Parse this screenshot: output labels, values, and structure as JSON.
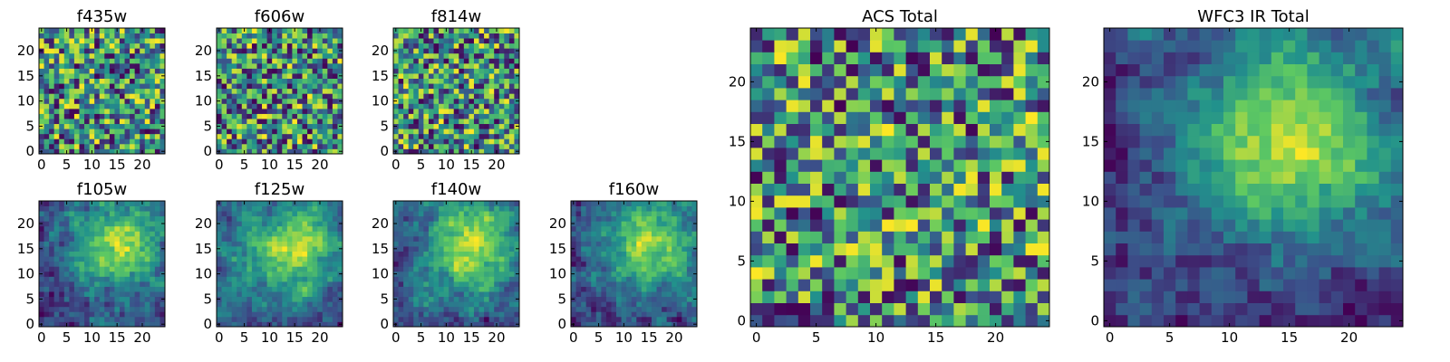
{
  "figure": {
    "colormap": "viridis",
    "colormap_stops": [
      "#440154",
      "#3b528b",
      "#21918c",
      "#5ec962",
      "#fde725"
    ]
  },
  "chart_data": [
    {
      "type": "heatmap",
      "title": "f435w",
      "grid": [
        25,
        25
      ],
      "xlim": [
        -0.5,
        24.5
      ],
      "ylim": [
        -0.5,
        24.5
      ],
      "xticks": [
        0,
        5,
        10,
        15,
        20
      ],
      "yticks": [
        0,
        5,
        10,
        15,
        20
      ],
      "texture": "noise",
      "seed": 11,
      "smooth": 0
    },
    {
      "type": "heatmap",
      "title": "f606w",
      "grid": [
        25,
        25
      ],
      "xlim": [
        -0.5,
        24.5
      ],
      "ylim": [
        -0.5,
        24.5
      ],
      "xticks": [
        0,
        5,
        10,
        15,
        20
      ],
      "yticks": [
        0,
        5,
        10,
        15,
        20
      ],
      "texture": "noise",
      "seed": 23,
      "smooth": 0
    },
    {
      "type": "heatmap",
      "title": "f814w",
      "grid": [
        25,
        25
      ],
      "xlim": [
        -0.5,
        24.5
      ],
      "ylim": [
        -0.5,
        24.5
      ],
      "xticks": [
        0,
        5,
        10,
        15,
        20
      ],
      "yticks": [
        0,
        5,
        10,
        15,
        20
      ],
      "texture": "noise",
      "seed": 37,
      "smooth": 0
    },
    {
      "type": "heatmap",
      "title": "f105w",
      "grid": [
        25,
        25
      ],
      "xlim": [
        -0.5,
        24.5
      ],
      "ylim": [
        -0.5,
        24.5
      ],
      "xticks": [
        0,
        5,
        10,
        15,
        20
      ],
      "yticks": [
        0,
        5,
        10,
        15,
        20
      ],
      "texture": "blob",
      "seed": 41,
      "smooth": 1
    },
    {
      "type": "heatmap",
      "title": "f125w",
      "grid": [
        25,
        25
      ],
      "xlim": [
        -0.5,
        24.5
      ],
      "ylim": [
        -0.5,
        24.5
      ],
      "xticks": [
        0,
        5,
        10,
        15,
        20
      ],
      "yticks": [
        0,
        5,
        10,
        15,
        20
      ],
      "texture": "blob",
      "seed": 53,
      "smooth": 1
    },
    {
      "type": "heatmap",
      "title": "f140w",
      "grid": [
        25,
        25
      ],
      "xlim": [
        -0.5,
        24.5
      ],
      "ylim": [
        -0.5,
        24.5
      ],
      "xticks": [
        0,
        5,
        10,
        15,
        20
      ],
      "yticks": [
        0,
        5,
        10,
        15,
        20
      ],
      "texture": "blob",
      "seed": 67,
      "smooth": 1
    },
    {
      "type": "heatmap",
      "title": "f160w",
      "grid": [
        25,
        25
      ],
      "xlim": [
        -0.5,
        24.5
      ],
      "ylim": [
        -0.5,
        24.5
      ],
      "xticks": [
        0,
        5,
        10,
        15,
        20
      ],
      "yticks": [
        0,
        5,
        10,
        15,
        20
      ],
      "texture": "blob",
      "seed": 79,
      "smooth": 1
    },
    {
      "type": "heatmap",
      "title": "ACS Total",
      "grid": [
        25,
        25
      ],
      "xlim": [
        -0.5,
        24.5
      ],
      "ylim": [
        -0.5,
        24.5
      ],
      "xticks": [
        0,
        5,
        10,
        15,
        20
      ],
      "yticks": [
        0,
        5,
        10,
        15,
        20
      ],
      "texture": "noise",
      "seed": 97,
      "smooth": 0
    },
    {
      "type": "heatmap",
      "title": "WFC3 IR Total",
      "grid": [
        25,
        25
      ],
      "xlim": [
        -0.5,
        24.5
      ],
      "ylim": [
        -0.5,
        24.5
      ],
      "xticks": [
        0,
        5,
        10,
        15,
        20
      ],
      "yticks": [
        0,
        5,
        10,
        15,
        20
      ],
      "texture": "blob",
      "seed": 113,
      "smooth": 2
    }
  ]
}
